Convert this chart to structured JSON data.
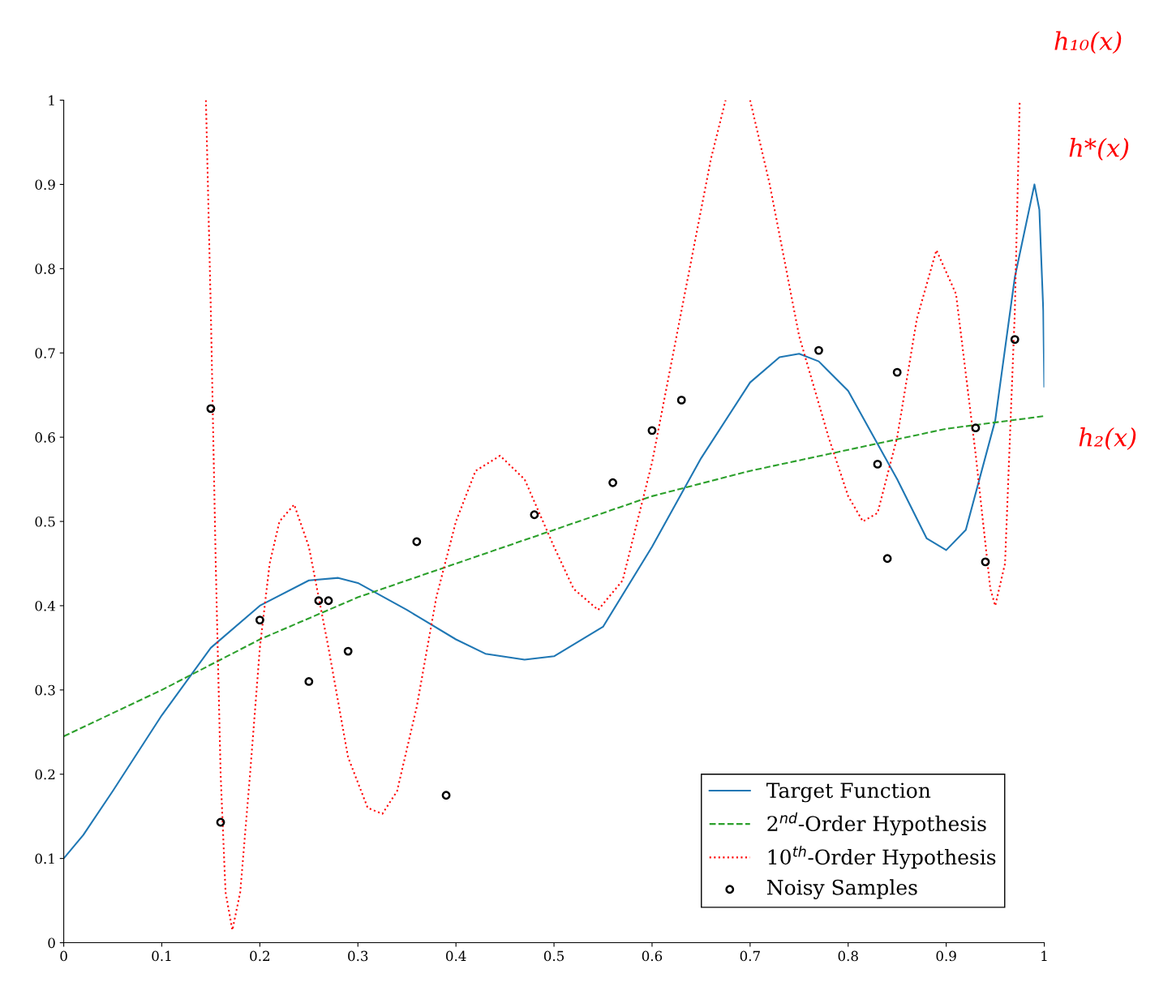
{
  "chart_data": {
    "type": "line",
    "xlim": [
      0,
      1
    ],
    "ylim": [
      0,
      1
    ],
    "xticks": [
      0,
      0.1,
      0.2,
      0.3,
      0.4,
      0.5,
      0.6,
      0.7,
      0.8,
      0.9,
      1
    ],
    "yticks": [
      0,
      0.1,
      0.2,
      0.3,
      0.4,
      0.5,
      0.6,
      0.7,
      0.8,
      0.9,
      1
    ],
    "grid": false,
    "legend": "bottom right",
    "series": [
      {
        "name": "Target Function",
        "color": "#1f77b4",
        "line_style": "solid",
        "marker": "none",
        "x": [
          0,
          0.02,
          0.05,
          0.1,
          0.15,
          0.2,
          0.25,
          0.28,
          0.3,
          0.35,
          0.4,
          0.43,
          0.47,
          0.5,
          0.55,
          0.6,
          0.65,
          0.7,
          0.73,
          0.75,
          0.77,
          0.8,
          0.85,
          0.88,
          0.9,
          0.92,
          0.95,
          0.97,
          0.99,
          0.995,
          0.999,
          1.0
        ],
        "values": [
          0.1,
          0.128,
          0.18,
          0.27,
          0.35,
          0.4,
          0.43,
          0.433,
          0.427,
          0.395,
          0.36,
          0.343,
          0.336,
          0.34,
          0.375,
          0.47,
          0.575,
          0.665,
          0.695,
          0.699,
          0.69,
          0.655,
          0.55,
          0.48,
          0.466,
          0.49,
          0.62,
          0.79,
          0.9,
          0.87,
          0.75,
          0.66
        ]
      },
      {
        "name": "2$^{nd}$-Order Hypothesis",
        "color": "#2ca02c",
        "line_style": "dashed",
        "marker": "none",
        "x": [
          0,
          0.1,
          0.2,
          0.3,
          0.4,
          0.5,
          0.6,
          0.7,
          0.8,
          0.9,
          1.0
        ],
        "values": [
          0.245,
          0.3,
          0.36,
          0.41,
          0.45,
          0.49,
          0.53,
          0.56,
          0.585,
          0.61,
          0.625
        ]
      },
      {
        "name": "10$^{th}$-Order Hypothesis",
        "color": "#ff0000",
        "line_style": "dotted",
        "marker": "none",
        "x": [
          0.145,
          0.15,
          0.155,
          0.16,
          0.165,
          0.172,
          0.18,
          0.19,
          0.2,
          0.21,
          0.22,
          0.235,
          0.25,
          0.27,
          0.29,
          0.31,
          0.325,
          0.34,
          0.36,
          0.38,
          0.4,
          0.42,
          0.445,
          0.47,
          0.5,
          0.52,
          0.545,
          0.57,
          0.6,
          0.63,
          0.66,
          0.675,
          0.69,
          0.7,
          0.72,
          0.75,
          0.78,
          0.8,
          0.815,
          0.83,
          0.85,
          0.87,
          0.89,
          0.91,
          0.93,
          0.945,
          0.95,
          0.96,
          0.97,
          0.975
        ],
        "values": [
          1.0,
          0.75,
          0.45,
          0.2,
          0.06,
          0.015,
          0.06,
          0.2,
          0.35,
          0.45,
          0.5,
          0.52,
          0.47,
          0.35,
          0.22,
          0.16,
          0.153,
          0.18,
          0.28,
          0.41,
          0.5,
          0.56,
          0.578,
          0.55,
          0.47,
          0.42,
          0.395,
          0.43,
          0.57,
          0.75,
          0.93,
          1.0,
          null,
          1.0,
          0.9,
          0.72,
          0.6,
          0.53,
          0.5,
          0.51,
          0.6,
          0.74,
          0.822,
          0.77,
          0.58,
          0.42,
          0.4,
          0.45,
          0.75,
          1.0
        ]
      },
      {
        "name": "Noisy Samples",
        "type": "scatter",
        "color": "#000000",
        "marker": "circle",
        "x": [
          0.15,
          0.16,
          0.2,
          0.25,
          0.26,
          0.27,
          0.29,
          0.36,
          0.39,
          0.48,
          0.56,
          0.6,
          0.63,
          0.77,
          0.83,
          0.84,
          0.85,
          0.93,
          0.94,
          0.97
        ],
        "values": [
          0.634,
          0.143,
          0.383,
          0.31,
          0.406,
          0.406,
          0.346,
          0.476,
          0.175,
          0.508,
          0.546,
          0.608,
          0.644,
          0.703,
          0.568,
          0.456,
          0.677,
          0.611,
          0.452,
          0.716
        ]
      }
    ],
    "annotations": [
      {
        "text": "h₁₀(x)",
        "x": 0.975,
        "y": 1.0
      },
      {
        "text": "h*(x)",
        "x": 0.99,
        "y": 0.9
      },
      {
        "text": "h₂(x)",
        "x": 1.0,
        "y": 0.625
      }
    ]
  }
}
